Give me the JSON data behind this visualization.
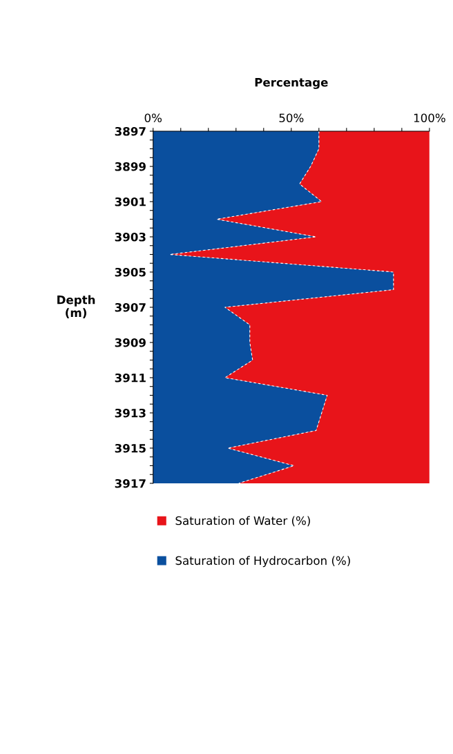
{
  "chart_data": {
    "type": "area",
    "orientation": "horizontal",
    "stacked": true,
    "xlabel": "Percentage",
    "ylabel": "Depth\n(m)",
    "x": [
      3897,
      3898,
      3899,
      3900,
      3901,
      3902,
      3903,
      3904,
      3905,
      3906,
      3907,
      3908,
      3909,
      3910,
      3911,
      3912,
      3913,
      3914,
      3915,
      3916,
      3917
    ],
    "series": [
      {
        "name": "Saturation of Hydrocarbon (%)",
        "color": "#0a4f9e",
        "values": [
          60,
          60,
          57,
          53,
          61,
          23,
          59,
          6,
          87,
          87,
          26,
          35,
          35,
          36,
          26,
          63,
          61,
          59,
          27,
          51,
          31
        ]
      },
      {
        "name": "Saturation of Water (%)",
        "color": "#e8141a",
        "values": [
          40,
          40,
          43,
          47,
          39,
          77,
          41,
          94,
          13,
          13,
          74,
          65,
          65,
          64,
          74,
          37,
          39,
          41,
          73,
          49,
          69
        ]
      }
    ],
    "xlim": [
      0,
      100
    ],
    "xticks": [
      {
        "value": 0,
        "label": "0%"
      },
      {
        "value": 10,
        "label": null
      },
      {
        "value": 20,
        "label": null
      },
      {
        "value": 30,
        "label": null
      },
      {
        "value": 40,
        "label": null
      },
      {
        "value": 50,
        "label": "50%"
      },
      {
        "value": 60,
        "label": null
      },
      {
        "value": 70,
        "label": null
      },
      {
        "value": 80,
        "label": null
      },
      {
        "value": 90,
        "label": null
      },
      {
        "value": 100,
        "label": "100%"
      }
    ],
    "ylim": [
      3917,
      3897
    ],
    "yticks": [
      3897,
      {
        "value": 3897.5,
        "label": null
      },
      {
        "value": 3898,
        "label": null
      },
      {
        "value": 3898.5,
        "label": null
      },
      3899,
      {
        "value": 3899.5,
        "label": null
      },
      {
        "value": 3900,
        "label": null
      },
      {
        "value": 3900.5,
        "label": null
      },
      3901,
      {
        "value": 3901.5,
        "label": null
      },
      {
        "value": 3902,
        "label": null
      },
      {
        "value": 3902.5,
        "label": null
      },
      3903,
      {
        "value": 3903.5,
        "label": null
      },
      {
        "value": 3904,
        "label": null
      },
      {
        "value": 3904.5,
        "label": null
      },
      3905,
      {
        "value": 3905.5,
        "label": null
      },
      {
        "value": 3906,
        "label": null
      },
      {
        "value": 3906.5,
        "label": null
      },
      3907,
      {
        "value": 3907.5,
        "label": null
      },
      {
        "value": 3908,
        "label": null
      },
      {
        "value": 3908.5,
        "label": null
      },
      3909,
      {
        "value": 3909.5,
        "label": null
      },
      {
        "value": 3910,
        "label": null
      },
      {
        "value": 3910.5,
        "label": null
      },
      3911,
      {
        "value": 3911.5,
        "label": null
      },
      {
        "value": 3912,
        "label": null
      },
      {
        "value": 3912.5,
        "label": null
      },
      3913,
      {
        "value": 3913.5,
        "label": null
      },
      {
        "value": 3914,
        "label": null
      },
      {
        "value": 3914.5,
        "label": null
      },
      3915,
      {
        "value": 3915.5,
        "label": null
      },
      {
        "value": 3916,
        "label": null
      },
      {
        "value": 3916.5,
        "label": null
      },
      3917
    ],
    "grid": false,
    "legend": "bottom"
  }
}
